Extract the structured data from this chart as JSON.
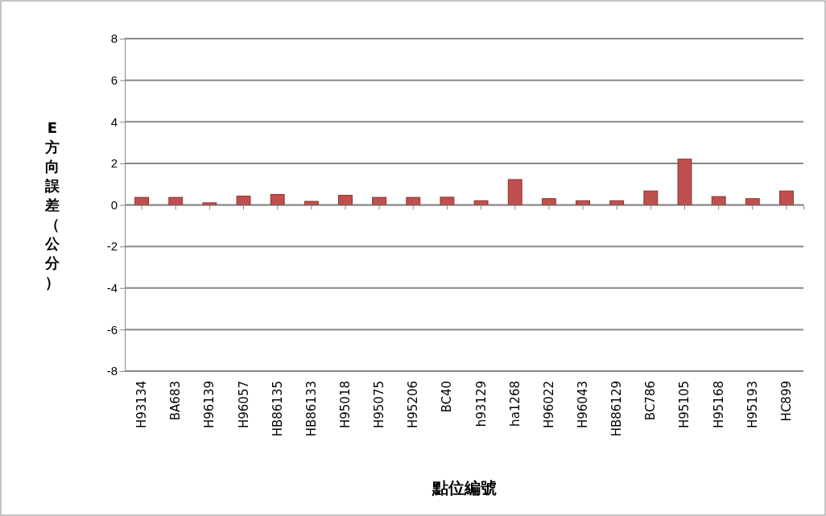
{
  "chart_data": {
    "type": "bar",
    "xlabel": "點位編號",
    "ylabel": "E方向誤差（公分）",
    "categories": [
      "H93134",
      "BA683",
      "H96139",
      "H96057",
      "HB86135",
      "HB86133",
      "H95018",
      "H95075",
      "H95206",
      "BC40",
      "h93129",
      "ha1268",
      "H96022",
      "H96043",
      "HB86129",
      "BC786",
      "H95105",
      "H95168",
      "H95193",
      "HC899"
    ],
    "values": [
      0.36,
      0.36,
      0.1,
      0.42,
      0.5,
      0.17,
      0.46,
      0.36,
      0.36,
      0.37,
      0.2,
      1.22,
      0.3,
      0.2,
      0.2,
      0.67,
      2.2,
      0.4,
      0.3,
      0.67
    ],
    "color": "#c0504d",
    "ylim": [
      -8,
      8
    ],
    "yticks": [
      -8,
      -6,
      -4,
      -2,
      0,
      2,
      4,
      6,
      8
    ],
    "grid": "y"
  }
}
